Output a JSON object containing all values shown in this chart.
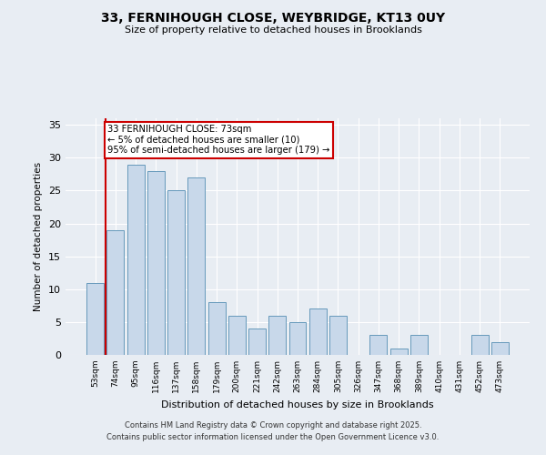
{
  "title1": "33, FERNIHOUGH CLOSE, WEYBRIDGE, KT13 0UY",
  "title2": "Size of property relative to detached houses in Brooklands",
  "xlabel": "Distribution of detached houses by size in Brooklands",
  "ylabel": "Number of detached properties",
  "categories": [
    "53sqm",
    "74sqm",
    "95sqm",
    "116sqm",
    "137sqm",
    "158sqm",
    "179sqm",
    "200sqm",
    "221sqm",
    "242sqm",
    "263sqm",
    "284sqm",
    "305sqm",
    "326sqm",
    "347sqm",
    "368sqm",
    "389sqm",
    "410sqm",
    "431sqm",
    "452sqm",
    "473sqm"
  ],
  "values": [
    11,
    19,
    29,
    28,
    25,
    27,
    8,
    6,
    4,
    6,
    5,
    7,
    6,
    0,
    3,
    1,
    3,
    0,
    0,
    3,
    2
  ],
  "bar_color": "#c8d8ea",
  "bar_edge_color": "#6699bb",
  "vline_color": "#cc0000",
  "annotation_text": "33 FERNIHOUGH CLOSE: 73sqm\n← 5% of detached houses are smaller (10)\n95% of semi-detached houses are larger (179) →",
  "annotation_box_color": "#ffffff",
  "annotation_box_edge": "#cc0000",
  "ylim": [
    0,
    36
  ],
  "yticks": [
    0,
    5,
    10,
    15,
    20,
    25,
    30,
    35
  ],
  "footer1": "Contains HM Land Registry data © Crown copyright and database right 2025.",
  "footer2": "Contains public sector information licensed under the Open Government Licence v3.0.",
  "background_color": "#e8edf3",
  "grid_color": "#ffffff"
}
